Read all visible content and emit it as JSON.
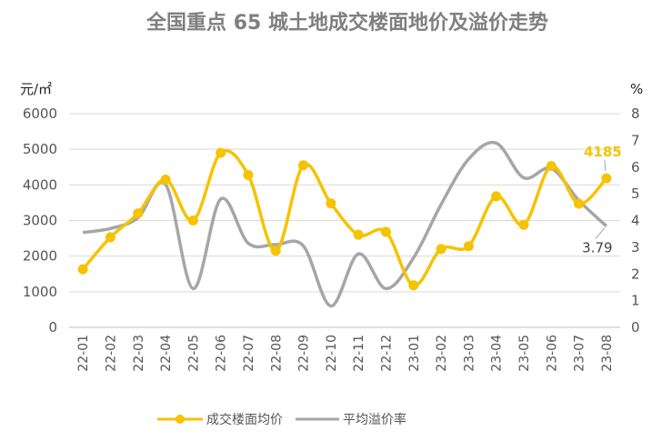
{
  "chart_data": {
    "type": "line",
    "title": "全国重点 65 城土地成交楼面地价及溢价走势",
    "y_left_label": "元/㎡",
    "y_right_label": "%",
    "y_left_ticks": [
      "0",
      "1000",
      "2000",
      "3000",
      "4000",
      "5000",
      "6000"
    ],
    "y_right_ticks": [
      "0",
      "1",
      "2",
      "3",
      "4",
      "5",
      "6",
      "7",
      "8"
    ],
    "ylim_left": [
      0,
      6000
    ],
    "ylim_right": [
      0,
      8
    ],
    "categories": [
      "22-01",
      "22-02",
      "22-03",
      "22-04",
      "22-05",
      "22-06",
      "22-07",
      "22-08",
      "22-09",
      "22-10",
      "22-11",
      "22-12",
      "23-01",
      "23-02",
      "23-03",
      "23-04",
      "23-05",
      "23-06",
      "23-07",
      "23-08"
    ],
    "grid": true,
    "legend_position": "bottom",
    "series": [
      {
        "name": "成交楼面均价",
        "axis": "left",
        "color": "#f5c300",
        "marker": "circle",
        "values": [
          1630,
          2530,
          3200,
          4150,
          3000,
          4900,
          4280,
          2150,
          4550,
          3480,
          2600,
          2680,
          1180,
          2200,
          2280,
          3680,
          2880,
          4530,
          3470,
          4185
        ]
      },
      {
        "name": "平均溢价率",
        "axis": "right",
        "color": "#a6a6a6",
        "marker": "none",
        "values": [
          3.55,
          3.7,
          4.1,
          5.35,
          1.45,
          4.8,
          3.15,
          3.1,
          3.05,
          0.8,
          2.75,
          1.45,
          2.6,
          4.6,
          6.3,
          6.9,
          5.6,
          5.95,
          4.75,
          3.79
        ]
      }
    ],
    "annotations": [
      "4185",
      "3.79"
    ]
  }
}
